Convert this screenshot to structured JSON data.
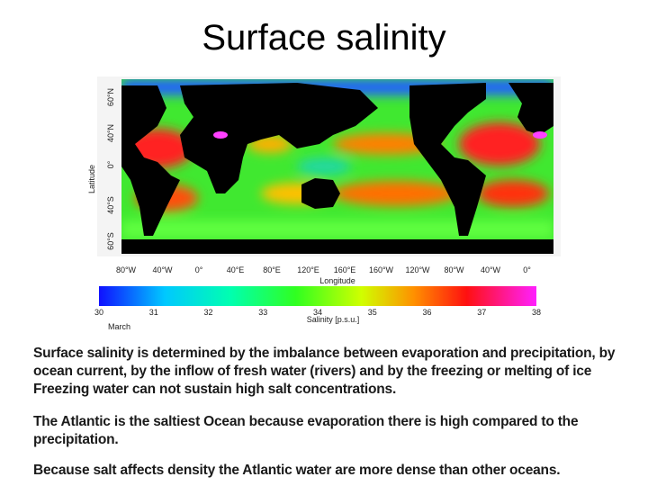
{
  "header": {
    "title": "Surface salinity"
  },
  "figure": {
    "y_axis_label": "Latitude",
    "y_ticks": [
      "60°N",
      "40°N",
      "0°",
      "40°S",
      "60°S"
    ],
    "x_axis_label": "Longitude",
    "x_ticks": [
      "80°W",
      "40°W",
      "0°",
      "40°E",
      "80°E",
      "120°E",
      "160°E",
      "160°W",
      "120°W",
      "80°W",
      "40°W",
      "0°"
    ],
    "colorbar_ticks": [
      30,
      31,
      32,
      33,
      34,
      35,
      36,
      37,
      38
    ],
    "month": "March",
    "colorbar_label": "Salinity [p.s.u.]"
  },
  "body": {
    "paragraphs": [
      "Surface salinity is determined by the imbalance between evaporation and precipitation, by ocean current, by the inflow of fresh water (rivers) and by the freezing or melting of ice Freezing water can not sustain high salt concentrations.",
      "The Atlantic is the saltiest Ocean because evaporation there is high compared to the precipitation.",
      "Because salt affects density the Atlantic water are more dense than other oceans."
    ]
  }
}
